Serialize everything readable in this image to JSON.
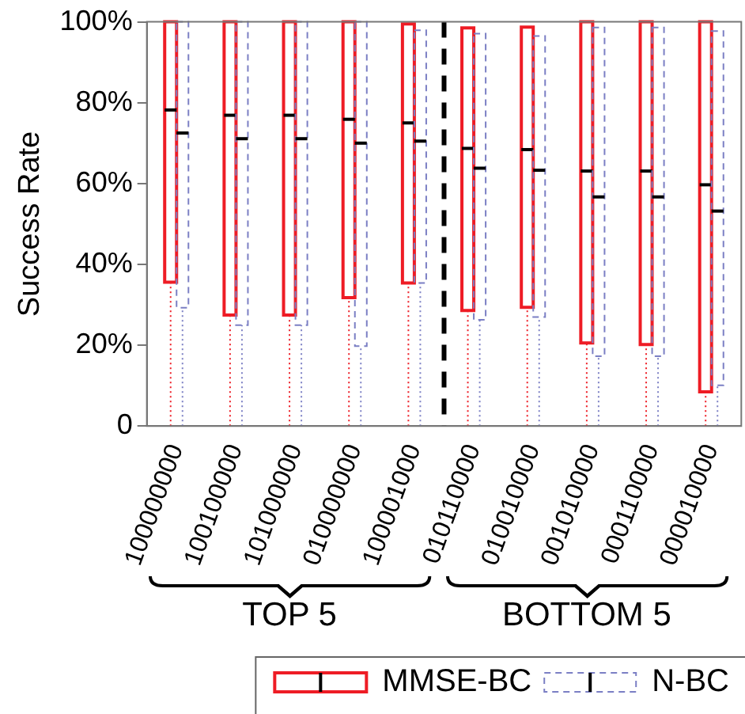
{
  "chart_data": {
    "type": "box",
    "ylabel": "Success Rate",
    "categories": [
      "100000000",
      "100100000",
      "101000000",
      "010000000",
      "100001000",
      "010110000",
      "010010000",
      "001010000",
      "000110000",
      "000010000"
    ],
    "series": [
      {
        "name": "MMSE-BC",
        "color": "#ee1c25",
        "line_style": "solid",
        "boxes": [
          {
            "low": 0,
            "q1": 35.6,
            "median": 78.2,
            "q3": 100,
            "high": 100
          },
          {
            "low": 0,
            "q1": 27.5,
            "median": 76.9,
            "q3": 100,
            "high": 100
          },
          {
            "low": 0,
            "q1": 27.5,
            "median": 76.9,
            "q3": 100,
            "high": 100
          },
          {
            "low": 0,
            "q1": 31.8,
            "median": 75.9,
            "q3": 100,
            "high": 100
          },
          {
            "low": 0,
            "q1": 35.4,
            "median": 75,
            "q3": 99.5,
            "high": 99.5
          },
          {
            "low": 0,
            "q1": 28.6,
            "median": 68.7,
            "q3": 98.5,
            "high": 98.5
          },
          {
            "low": 0,
            "q1": 29.4,
            "median": 68.4,
            "q3": 98.7,
            "high": 98.7
          },
          {
            "low": 0,
            "q1": 20.6,
            "median": 63.1,
            "q3": 100,
            "high": 100
          },
          {
            "low": 0,
            "q1": 20.2,
            "median": 63.1,
            "q3": 100,
            "high": 100
          },
          {
            "low": 0,
            "q1": 8.5,
            "median": 59.7,
            "q3": 100,
            "high": 100
          }
        ]
      },
      {
        "name": "N-BC",
        "color": "#7b7fc4",
        "line_style": "dashed",
        "boxes": [
          {
            "low": 0,
            "q1": 29.3,
            "median": 72.5,
            "q3": 100,
            "high": 100
          },
          {
            "low": 0,
            "q1": 25,
            "median": 71.1,
            "q3": 100,
            "high": 100
          },
          {
            "low": 0,
            "q1": 25,
            "median": 71.1,
            "q3": 100,
            "high": 100
          },
          {
            "low": 0,
            "q1": 19.8,
            "median": 70,
            "q3": 100,
            "high": 100
          },
          {
            "low": 0,
            "q1": 35.4,
            "median": 70.5,
            "q3": 97.9,
            "high": 97.9
          },
          {
            "low": 0,
            "q1": 26.3,
            "median": 63.8,
            "q3": 97.1,
            "high": 97.1
          },
          {
            "low": 0,
            "q1": 27,
            "median": 63.3,
            "q3": 96.5,
            "high": 96.5
          },
          {
            "low": 0,
            "q1": 17.3,
            "median": 56.7,
            "q3": 98.6,
            "high": 98.6
          },
          {
            "low": 0,
            "q1": 17.3,
            "median": 56.7,
            "q3": 98.6,
            "high": 98.6
          },
          {
            "low": 0,
            "q1": 10.1,
            "median": 53.2,
            "q3": 97.7,
            "high": 97.7
          }
        ]
      }
    ],
    "ylim": [
      0,
      100
    ],
    "yticks": [
      0,
      {
        "value": 20,
        "label": "20%"
      },
      {
        "value": 40,
        "label": "40%"
      },
      {
        "value": 60,
        "label": "60%"
      },
      {
        "value": 80,
        "label": "80%"
      },
      {
        "value": 100,
        "label": "100%"
      }
    ],
    "annotations": [
      "TOP 5",
      "BOTTOM 5"
    ],
    "grid": false,
    "legend": "bottom"
  }
}
